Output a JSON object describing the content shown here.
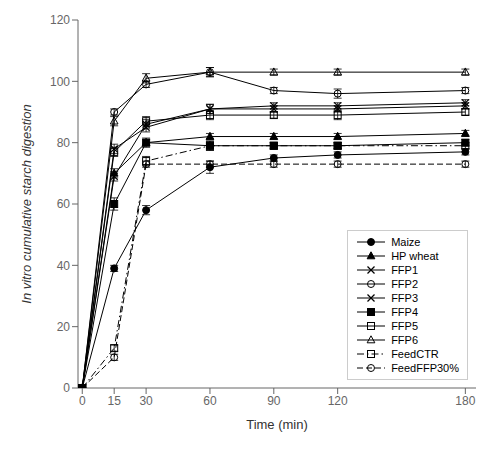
{
  "chart_data": {
    "type": "line",
    "x": [
      0,
      15,
      30,
      60,
      90,
      120,
      180
    ],
    "xlabel": "Time (min)",
    "ylabel": "In vitro cumulative starch digestion",
    "xlim": [
      -2,
      185
    ],
    "ylim": [
      0,
      120
    ],
    "xticks": [
      0,
      15,
      30,
      60,
      90,
      120,
      180
    ],
    "yticks": [
      0,
      20,
      40,
      60,
      80,
      100,
      120
    ],
    "grid": false,
    "legend": "lower right",
    "color": "#000000",
    "series": [
      {
        "name": "Maize",
        "values": [
          0,
          39,
          58,
          72,
          75,
          76,
          77
        ],
        "yerr": [
          0,
          1.0,
          1.5,
          2.0,
          1.0,
          1.0,
          1.0
        ],
        "marker": "circle",
        "line_style": "solid"
      },
      {
        "name": "HP wheat",
        "values": [
          0,
          70,
          80,
          82,
          82,
          82,
          83
        ],
        "yerr": [
          0,
          1.5,
          1.0,
          1.0,
          1.0,
          1.0,
          1.0
        ],
        "marker": "triangle",
        "line_style": "solid"
      },
      {
        "name": "FFP1",
        "values": [
          0,
          69,
          86,
          91,
          92,
          92,
          93
        ],
        "yerr": [
          0,
          1.5,
          1.5,
          1.5,
          1.0,
          1.0,
          1.0
        ],
        "marker": "x",
        "line_style": "solid"
      },
      {
        "name": "FFP2",
        "values": [
          0,
          90,
          99,
          103,
          97,
          96,
          97
        ],
        "yerr": [
          0,
          1.0,
          1.0,
          1.5,
          1.0,
          1.5,
          1.0
        ],
        "marker": "circle-open",
        "line_style": "solid"
      },
      {
        "name": "FFP3",
        "values": [
          0,
          78,
          85,
          91,
          91,
          91,
          92
        ],
        "yerr": [
          0,
          1.5,
          1.5,
          1.5,
          1.0,
          1.0,
          1.0
        ],
        "marker": "x",
        "line_style": "solid"
      },
      {
        "name": "FFP4",
        "values": [
          0,
          60,
          80,
          79,
          79,
          79,
          80
        ],
        "yerr": [
          0,
          2.0,
          1.5,
          1.5,
          1.0,
          1.0,
          1.0
        ],
        "marker": "square",
        "line_style": "solid"
      },
      {
        "name": "FFP5",
        "values": [
          0,
          77,
          87,
          89,
          89,
          89,
          90
        ],
        "yerr": [
          0,
          1.5,
          1.5,
          1.5,
          1.0,
          1.5,
          1.0
        ],
        "marker": "square-open",
        "line_style": "solid"
      },
      {
        "name": "FFP6",
        "values": [
          0,
          87,
          101,
          103,
          103,
          103,
          103
        ],
        "yerr": [
          0,
          1.5,
          1.5,
          1.5,
          1.0,
          1.0,
          1.0
        ],
        "marker": "triangle-open",
        "line_style": "solid"
      },
      {
        "name": "FeedCTR",
        "values": [
          0,
          13,
          74,
          79,
          79,
          79,
          79
        ],
        "yerr": [
          0,
          1.0,
          1.5,
          1.5,
          1.0,
          1.0,
          1.0
        ],
        "marker": "square-open",
        "line_style": "dashdot"
      },
      {
        "name": "FeedFFP30%",
        "values": [
          0,
          10,
          73,
          73,
          73,
          73,
          73
        ],
        "yerr": [
          0,
          1.0,
          1.0,
          1.0,
          1.0,
          1.0,
          1.0
        ],
        "marker": "circle-open",
        "line_style": "dashed"
      }
    ]
  }
}
